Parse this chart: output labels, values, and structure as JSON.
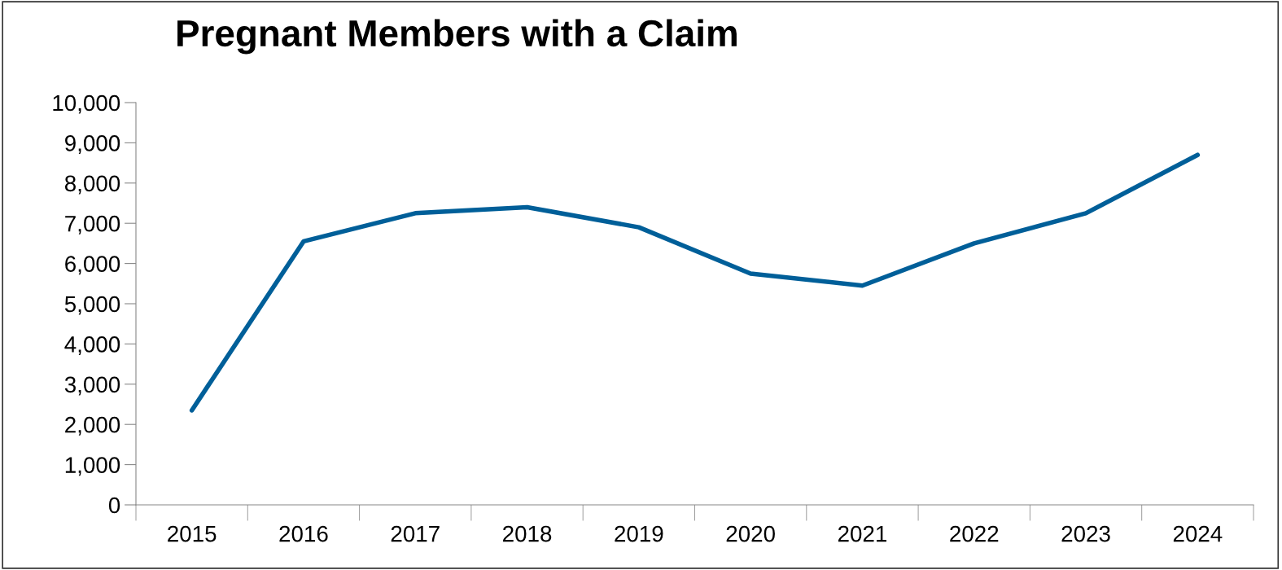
{
  "chart_data": {
    "type": "line",
    "title": "Pregnant Members with a Claim",
    "categories": [
      "2015",
      "2016",
      "2017",
      "2018",
      "2019",
      "2020",
      "2021",
      "2022",
      "2023",
      "2024"
    ],
    "series": [
      {
        "color": "#005f99",
        "values": [
          2350,
          6550,
          7250,
          7400,
          6900,
          5750,
          5450,
          6500,
          7250,
          8700
        ]
      }
    ],
    "ylim": [
      0,
      10000
    ],
    "yticks": [
      {
        "value": 0,
        "label": "0"
      },
      {
        "value": 1000,
        "label": "1,000"
      },
      {
        "value": 2000,
        "label": "2,000"
      },
      {
        "value": 3000,
        "label": "3,000"
      },
      {
        "value": 4000,
        "label": "4,000"
      },
      {
        "value": 5000,
        "label": "5,000"
      },
      {
        "value": 6000,
        "label": "6,000"
      },
      {
        "value": 7000,
        "label": "7,000"
      },
      {
        "value": 8000,
        "label": "8,000"
      },
      {
        "value": 9000,
        "label": "9,000"
      },
      {
        "value": 10000,
        "label": "10,000"
      }
    ],
    "grid": false,
    "marker": "none",
    "line_style": "solid"
  }
}
